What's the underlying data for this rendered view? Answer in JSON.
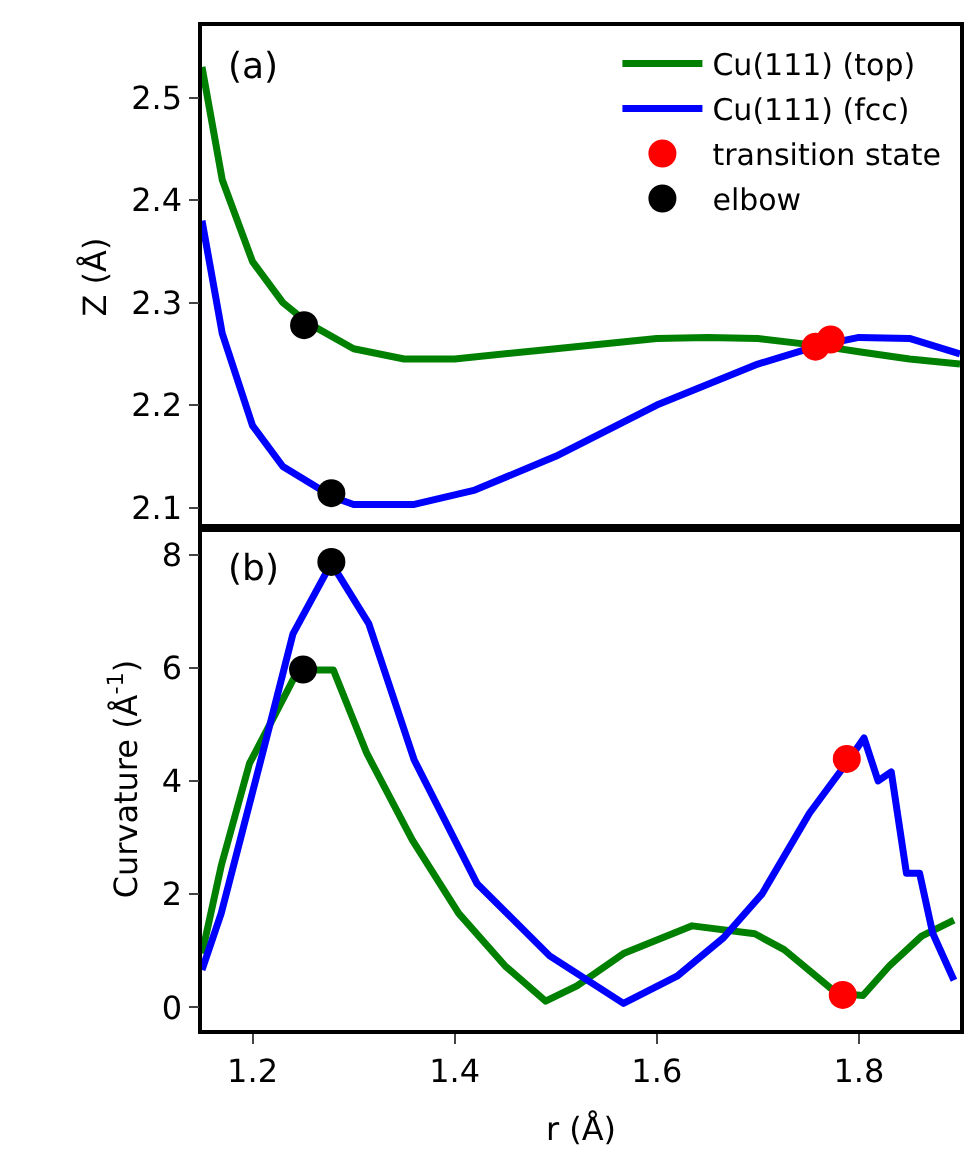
{
  "chart_data": [
    {
      "type": "line",
      "ylabel": "Z (Å)",
      "annotations": [
        "(a)"
      ],
      "xlim": [
        1.15,
        1.9
      ],
      "ylim": [
        2.08,
        2.57
      ],
      "yticks": [
        2.1,
        2.2,
        2.3,
        2.4,
        2.5
      ],
      "tick_labels": "y",
      "grid": false,
      "legend": "top right",
      "series": [
        {
          "name": "Cu(111) (top)",
          "color": "#008000",
          "x": [
            1.15,
            1.17,
            1.2,
            1.23,
            1.255,
            1.3,
            1.35,
            1.4,
            1.5,
            1.6,
            1.65,
            1.7,
            1.76,
            1.8,
            1.85,
            1.9
          ],
          "values": [
            2.53,
            2.42,
            2.34,
            2.3,
            2.28,
            2.255,
            2.245,
            2.245,
            2.255,
            2.265,
            2.266,
            2.265,
            2.258,
            2.252,
            2.245,
            2.24
          ]
        },
        {
          "name": "Cu(111) (fcc)",
          "color": "#0000ff",
          "x": [
            1.15,
            1.17,
            1.2,
            1.23,
            1.28,
            1.3,
            1.36,
            1.42,
            1.5,
            1.6,
            1.7,
            1.76,
            1.8,
            1.85,
            1.9
          ],
          "values": [
            2.38,
            2.27,
            2.18,
            2.14,
            2.11,
            2.103,
            2.103,
            2.117,
            2.15,
            2.2,
            2.24,
            2.258,
            2.266,
            2.265,
            2.25
          ]
        },
        {
          "name": "transition state",
          "color": "#ff0000",
          "type": "scatter",
          "marker": "circle",
          "x": [
            1.757,
            1.772
          ],
          "values": [
            2.257,
            2.264
          ]
        },
        {
          "name": "elbow",
          "color": "#000000",
          "type": "scatter",
          "marker": "circle",
          "x": [
            1.251,
            1.278
          ],
          "values": [
            2.278,
            2.114
          ]
        }
      ]
    },
    {
      "type": "line",
      "xlabel": "r (Å)",
      "ylabel": "Curvature (Å$^{-1}$)",
      "annotations": [
        "(b)"
      ],
      "xlim": [
        1.15,
        1.9
      ],
      "xticks": [
        1.2,
        1.4,
        1.6,
        1.8
      ],
      "ylim": [
        -0.4,
        8.47
      ],
      "yticks": [
        0,
        2,
        4,
        6,
        8
      ],
      "grid": false,
      "legend": false,
      "series": [
        {
          "color": "#008000",
          "x": [
            1.15,
            1.169,
            1.197,
            1.223,
            1.245,
            1.28,
            1.313,
            1.358,
            1.404,
            1.45,
            1.49,
            1.521,
            1.567,
            1.635,
            1.697,
            1.726,
            1.778,
            1.804,
            1.83,
            1.862,
            1.894
          ],
          "values": [
            0.95,
            2.5,
            4.31,
            5.2,
            5.96,
            5.96,
            4.49,
            2.96,
            1.66,
            0.73,
            0.11,
            0.38,
            0.95,
            1.44,
            1.3,
            1.02,
            0.25,
            0.21,
            0.73,
            1.26,
            1.54
          ]
        },
        {
          "color": "#0000ff",
          "x": [
            1.15,
            1.169,
            1.215,
            1.24,
            1.278,
            1.315,
            1.36,
            1.422,
            1.494,
            1.567,
            1.62,
            1.666,
            1.704,
            1.751,
            1.79,
            1.805,
            1.819,
            1.832,
            1.847,
            1.86,
            1.873,
            1.894
          ],
          "values": [
            0.66,
            1.66,
            4.84,
            6.6,
            7.85,
            6.78,
            4.37,
            2.19,
            0.91,
            0.07,
            0.55,
            1.23,
            2.0,
            3.43,
            4.37,
            4.76,
            4.0,
            4.16,
            2.37,
            2.37,
            1.31,
            0.48
          ]
        },
        {
          "color": "#ff0000",
          "type": "scatter",
          "marker": "circle",
          "x": [
            1.788,
            1.784
          ],
          "values": [
            4.39,
            0.22
          ]
        },
        {
          "color": "#000000",
          "type": "scatter",
          "marker": "circle",
          "x": [
            1.25,
            1.278
          ],
          "values": [
            5.97,
            7.87
          ]
        }
      ]
    }
  ]
}
